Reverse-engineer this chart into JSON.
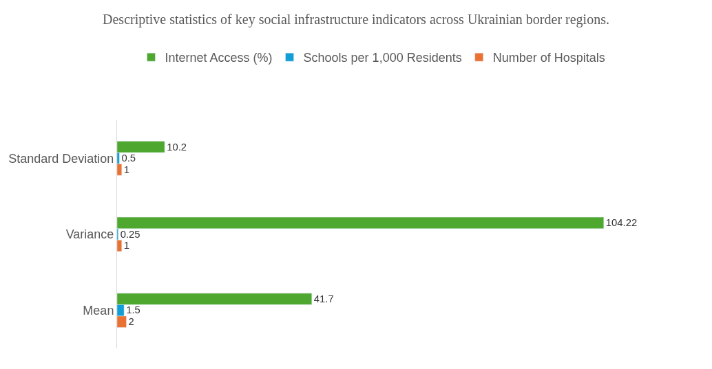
{
  "chart_data": {
    "type": "bar",
    "orientation": "horizontal",
    "title": "Descriptive statistics of key social infrastructure indicators across Ukrainian border regions.",
    "categories": [
      "Standard Deviation",
      "Variance",
      "Mean"
    ],
    "series": [
      {
        "name": "Internet Access (%)",
        "color": "#4ea72e",
        "values": [
          10.2,
          104.22,
          41.7
        ]
      },
      {
        "name": "Schools per 1,000 Residents",
        "color": "#0f9ed5",
        "values": [
          0.5,
          0.25,
          1.5
        ]
      },
      {
        "name": "Number of Hospitals",
        "color": "#e97132",
        "values": [
          1,
          1,
          2
        ]
      }
    ],
    "data_labels": true,
    "legend": "top"
  }
}
